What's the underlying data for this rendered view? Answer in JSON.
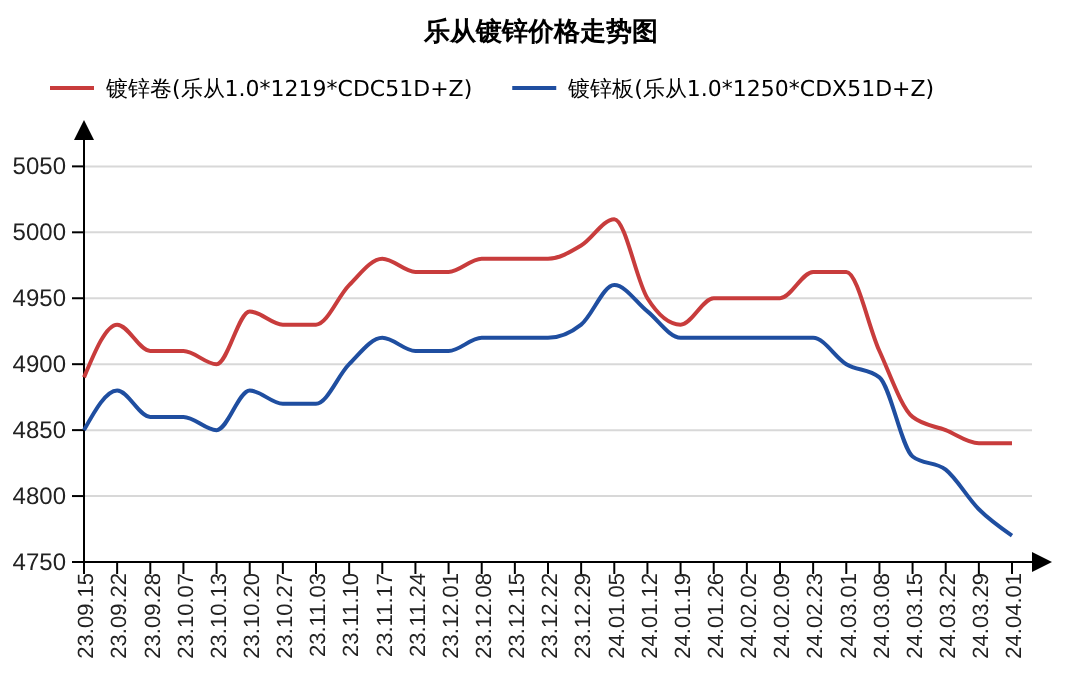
{
  "chart_data": {
    "type": "line",
    "title": "乐从镀锌价格走势图",
    "categories": [
      "23.09.15",
      "23.09.22",
      "23.09.28",
      "23.10.07",
      "23.10.13",
      "23.10.20",
      "23.10.27",
      "23.11.03",
      "23.11.10",
      "23.11.17",
      "23.11.24",
      "23.12.01",
      "23.12.08",
      "23.12.15",
      "23.12.22",
      "23.12.29",
      "24.01.05",
      "24.01.12",
      "24.01.19",
      "24.01.26",
      "24.02.02",
      "24.02.09",
      "24.02.23",
      "24.03.01",
      "24.03.08",
      "24.03.15",
      "24.03.22",
      "24.03.29",
      "24.04.01"
    ],
    "series": [
      {
        "name": "镀锌卷(乐从1.0*1219*CDC51D+Z)",
        "color": "#c83c3c",
        "values": [
          4890,
          4930,
          4910,
          4910,
          4900,
          4940,
          4930,
          4930,
          4960,
          4980,
          4970,
          4970,
          4980,
          4980,
          4980,
          4990,
          5010,
          4950,
          4930,
          4950,
          4950,
          4950,
          4970,
          4970,
          4910,
          4860,
          4850,
          4840,
          4840
        ]
      },
      {
        "name": "镀锌板(乐从1.0*1250*CDX51D+Z)",
        "color": "#1f4ea0",
        "values": [
          4850,
          4880,
          4860,
          4860,
          4850,
          4880,
          4870,
          4870,
          4900,
          4920,
          4910,
          4910,
          4920,
          4920,
          4920,
          4930,
          4960,
          4940,
          4920,
          4920,
          4920,
          4920,
          4920,
          4900,
          4890,
          4830,
          4820,
          4790,
          4770
        ]
      }
    ],
    "ylim": [
      4750,
      5070
    ],
    "yticks": [
      4750,
      4800,
      4850,
      4900,
      4950,
      5000,
      5050
    ],
    "grid": "y",
    "legend": "top",
    "line_style": "solid",
    "marker": "none"
  }
}
